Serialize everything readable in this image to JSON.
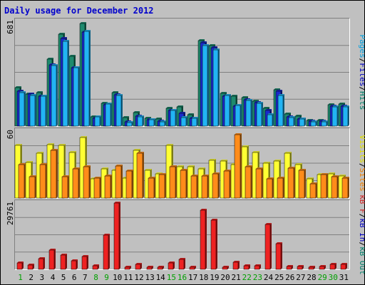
{
  "chart_data": {
    "title": "Daily usage for December 2012",
    "type": "bar",
    "categories": [
      "1",
      "2",
      "3",
      "4",
      "5",
      "6",
      "7",
      "8",
      "9",
      "10",
      "11",
      "12",
      "13",
      "14",
      "15",
      "16",
      "17",
      "18",
      "19",
      "20",
      "21",
      "22",
      "23",
      "24",
      "25",
      "26",
      "27",
      "28",
      "29",
      "30",
      "31"
    ],
    "weekend_days": [
      "1",
      "8",
      "9",
      "15",
      "16",
      "22",
      "23",
      "29",
      "30"
    ],
    "panels": [
      {
        "id": "hits-files-pages",
        "ymax_label": "681",
        "ymax": 681,
        "right_labels": [
          {
            "text": "Pages",
            "color": "#00a0e0"
          },
          {
            "text": "/",
            "color": "#000000"
          },
          {
            "text": "Files",
            "color": "#0000c0"
          },
          {
            "text": "/",
            "color": "#000000"
          },
          {
            "text": "Hits",
            "color": "#00806a"
          }
        ],
        "series": [
          {
            "name": "Hits",
            "color": "#1e8a6e",
            "values": [
              249,
              209,
              216,
              437,
              596,
              455,
              666,
              62,
              146,
              220,
              56,
              86,
              51,
              46,
              117,
              126,
              76,
              555,
              523,
              215,
              194,
              184,
              162,
              114,
              235,
              81,
              63,
              39,
              37,
              140,
              144
            ]
          },
          {
            "name": "Files",
            "color": "#1a2acc",
            "values": [
              226,
              208,
              195,
              400,
              570,
              379,
              611,
              52,
              138,
              205,
              27,
              64,
              40,
              32,
              100,
              82,
              52,
              542,
              510,
              195,
              132,
              172,
              151,
              104,
              227,
              59,
              45,
              31,
              31,
              130,
              130
            ]
          },
          {
            "name": "Pages",
            "color": "#22b4f4",
            "values": [
              218,
              198,
              195,
              395,
              549,
              379,
              615,
              58,
              142,
              198,
              22,
              60,
              42,
              30,
              100,
              55,
              50,
              523,
              495,
              198,
              136,
              168,
              146,
              76,
              201,
              55,
              48,
              29,
              26,
              126,
              125
            ]
          }
        ]
      },
      {
        "id": "visits-sites",
        "ymax_label": "60",
        "ymax": 60,
        "right_labels": [
          {
            "text": "Visits",
            "color": "#e0e000"
          },
          {
            "text": "/",
            "color": "#000000"
          },
          {
            "text": "Sites",
            "color": "#f08000"
          }
        ],
        "series": [
          {
            "name": "Visits",
            "color": "#ffff33",
            "values": [
              47,
              32,
              40,
              48,
              47,
              41,
              54,
              17,
              26,
              25,
              18,
              43,
              25,
              22,
              47,
              28,
              28,
              26,
              34,
              33,
              30,
              46,
              41,
              31,
              33,
              40,
              30,
              17,
              21,
              22,
              20
            ]
          },
          {
            "name": "Sites",
            "color": "#ff8c1a",
            "values": [
              30,
              19,
              30,
              43,
              19,
              26,
              28,
              18,
              20,
              29,
              24,
              40,
              18,
              21,
              28,
              25,
              20,
              20,
              22,
              24,
              57,
              28,
              26,
              17,
              18,
              27,
              25,
              13,
              21,
              19,
              18
            ]
          }
        ]
      },
      {
        "id": "kbytes",
        "ymax_label": "29761",
        "ymax": 29761,
        "right_labels": [
          {
            "text": "kB F",
            "color": "#d02020"
          },
          {
            "text": "/",
            "color": "#000000"
          },
          {
            "text": "kB In",
            "color": "#0000c0"
          },
          {
            "text": "/",
            "color": "#000000"
          },
          {
            "text": "kB Out",
            "color": "#00806a"
          }
        ],
        "series": [
          {
            "name": "kB F",
            "color": "#ee2222",
            "values": [
              2900,
              1800,
              4800,
              8700,
              6500,
              3700,
              5900,
              1500,
              15300,
              29761,
              900,
              2100,
              900,
              1100,
              2900,
              4400,
              1100,
              26700,
              22000,
              1100,
              3300,
              1500,
              1500,
              20300,
              11500,
              1200,
              1300,
              1100,
              1200,
              2100,
              2300
            ]
          }
        ]
      }
    ]
  }
}
